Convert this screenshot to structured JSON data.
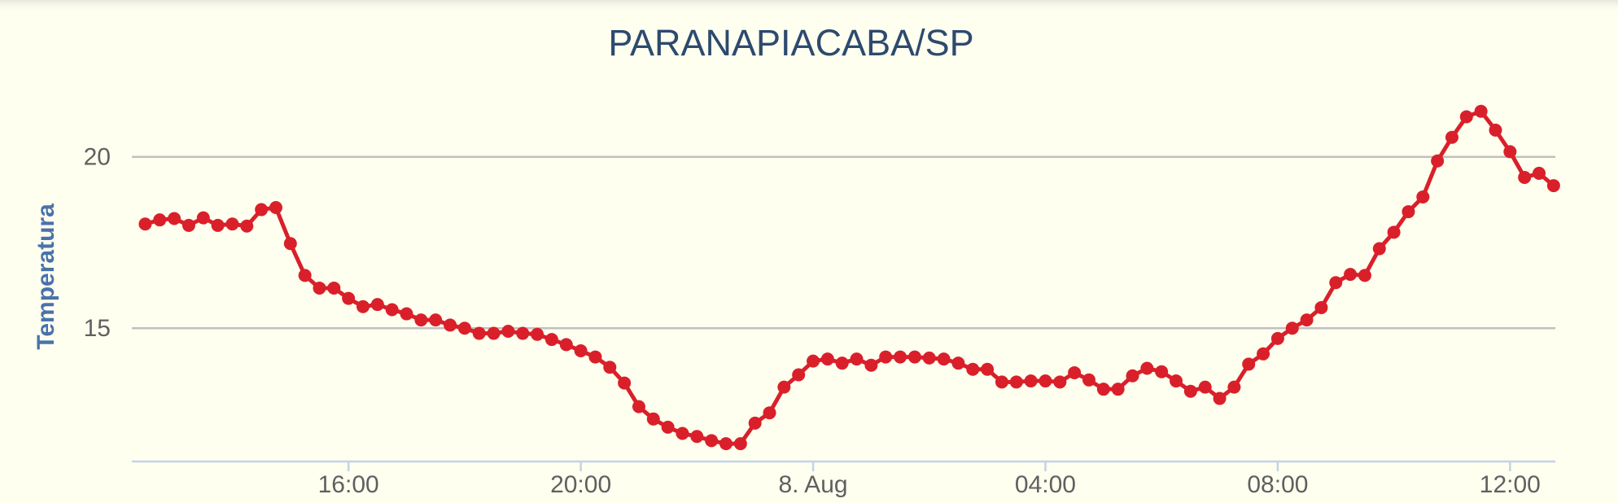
{
  "chart_data": {
    "type": "line",
    "title": "PARANAPIACABA/SP",
    "y_label": "Temperatura",
    "x": [
      12.5,
      12.75,
      13,
      13.25,
      13.5,
      13.75,
      14,
      14.25,
      14.5,
      14.75,
      15,
      15.25,
      15.5,
      15.75,
      16,
      16.25,
      16.5,
      16.75,
      17,
      17.25,
      17.5,
      17.75,
      18,
      18.25,
      18.5,
      18.75,
      19,
      19.25,
      19.5,
      19.75,
      20,
      20.25,
      20.5,
      20.75,
      21,
      21.25,
      21.5,
      21.75,
      22,
      22.25,
      22.5,
      22.75,
      23,
      23.25,
      23.5,
      23.75,
      24,
      24.25,
      24.5,
      24.75,
      25,
      25.25,
      25.5,
      25.75,
      26,
      26.25,
      26.5,
      26.75,
      27,
      27.25,
      27.5,
      27.75,
      28,
      28.25,
      28.5,
      28.75,
      29,
      29.25,
      29.5,
      29.75,
      30,
      30.25,
      30.5,
      30.75,
      31,
      31.25,
      31.5,
      31.75,
      32,
      32.25,
      32.5,
      32.75,
      33,
      33.25,
      33.5,
      33.75,
      34,
      34.25,
      34.5,
      34.75,
      35,
      35.25,
      35.5,
      35.75,
      36,
      36.25,
      36.5,
      36.75
    ],
    "series": [
      {
        "color": "#d9202a",
        "values": [
          18.04,
          18.16,
          18.2,
          18.0,
          18.22,
          18.0,
          18.04,
          17.98,
          18.46,
          18.52,
          17.47,
          16.54,
          16.17,
          16.17,
          15.87,
          15.63,
          15.69,
          15.54,
          15.42,
          15.24,
          15.24,
          15.09,
          15.0,
          14.85,
          14.85,
          14.91,
          14.85,
          14.82,
          14.67,
          14.52,
          14.34,
          14.16,
          13.86,
          13.4,
          12.71,
          12.35,
          12.11,
          11.93,
          11.84,
          11.72,
          11.63,
          11.63,
          12.23,
          12.53,
          13.28,
          13.64,
          14.04,
          14.1,
          13.98,
          14.1,
          13.92,
          14.16,
          14.16,
          14.16,
          14.13,
          14.1,
          13.98,
          13.8,
          13.8,
          13.43,
          13.43,
          13.46,
          13.46,
          13.43,
          13.7,
          13.49,
          13.22,
          13.22,
          13.61,
          13.83,
          13.73,
          13.46,
          13.16,
          13.28,
          12.95,
          13.28,
          13.95,
          14.25,
          14.7,
          15.0,
          15.24,
          15.6,
          16.33,
          16.57,
          16.54,
          17.32,
          17.8,
          18.4,
          18.83,
          19.88,
          20.57,
          21.17,
          21.33,
          20.78,
          20.15,
          19.4,
          19.52,
          19.16
        ]
      }
    ],
    "xlim": [
      12.27,
      36.78
    ],
    "xticks": [
      {
        "value": 16,
        "label": "16:00"
      },
      {
        "value": 20,
        "label": "20:00"
      },
      {
        "value": 24,
        "label": "8. Aug"
      },
      {
        "value": 28,
        "label": "04:00"
      },
      {
        "value": 32,
        "label": "08:00"
      },
      {
        "value": 36,
        "label": "12:00"
      }
    ],
    "ylim": [
      11.11,
      22.0
    ],
    "yticks": [
      15,
      20
    ],
    "grid": true
  }
}
